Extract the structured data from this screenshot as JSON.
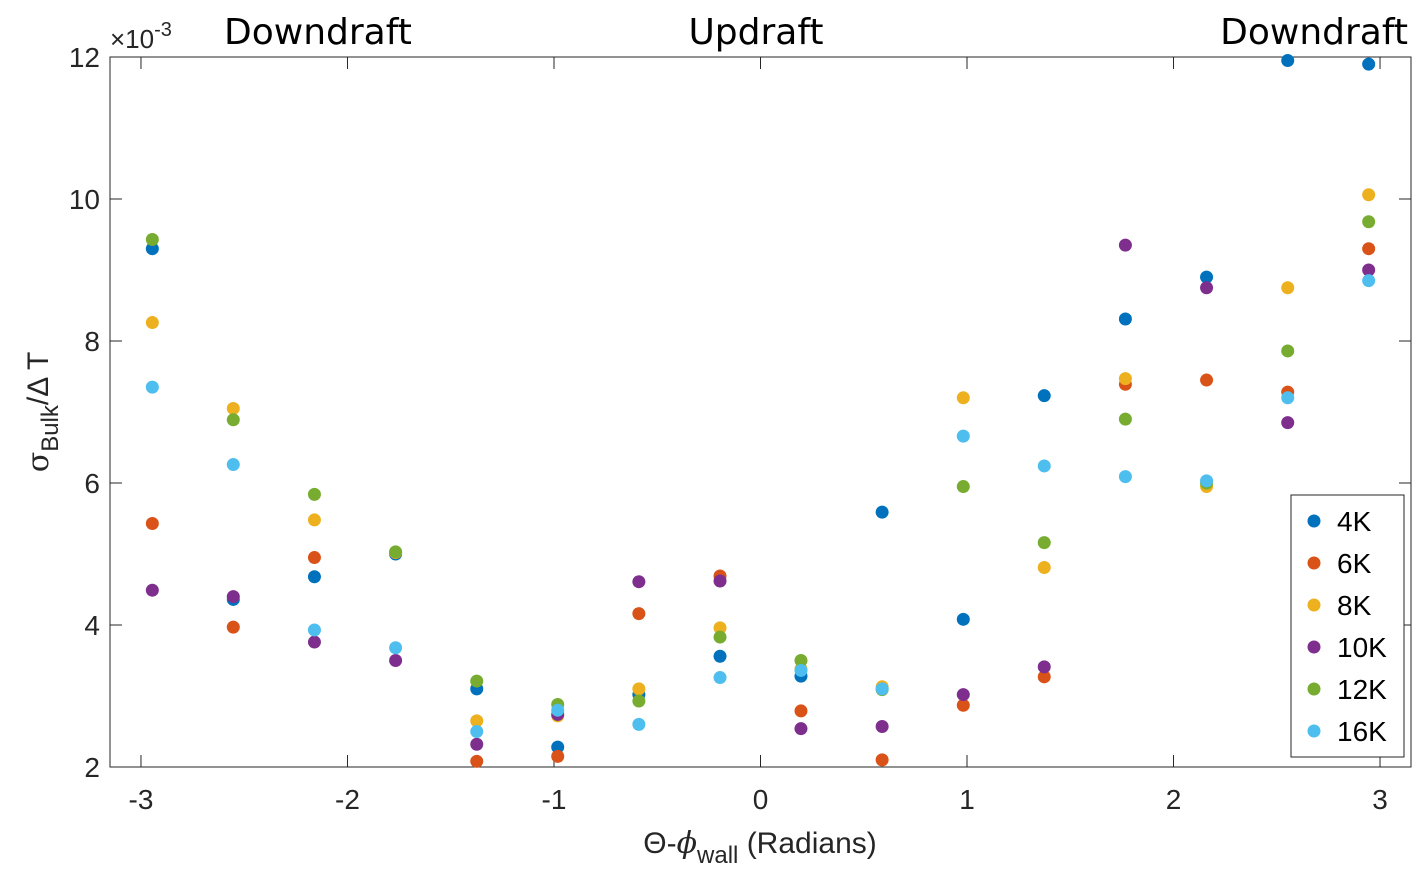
{
  "chart_data": {
    "type": "scatter",
    "xlabel": {
      "main": "Θ-",
      "sym": "ϕ",
      "sub": "wall",
      "rest": " (Radians)"
    },
    "ylabel": {
      "sym": "σ",
      "sub": "Bulk",
      "rest": "/Δ T"
    },
    "y_multiplier": {
      "prefix": "×10",
      "exponent": "-3"
    },
    "xlim": [
      -3.15,
      3.15
    ],
    "ylim": [
      2,
      12
    ],
    "xticks": [
      -3,
      -2,
      -1,
      0,
      1,
      2,
      3
    ],
    "xtick_labels": [
      "-3",
      "-2",
      "-1",
      "0",
      "1",
      "2",
      "3"
    ],
    "yticks": [
      2,
      4,
      6,
      8,
      10,
      12
    ],
    "ytick_labels": [
      "2",
      "4",
      "6",
      "8",
      "10",
      "12"
    ],
    "grid": false,
    "legend_position": "bottom-right",
    "annotations": [
      {
        "text": "Downdraft",
        "align": "left"
      },
      {
        "text": "Updraft",
        "align": "center"
      },
      {
        "text": "Downdraft",
        "align": "right"
      }
    ],
    "x": [
      -2.945,
      -2.553,
      -2.16,
      -1.767,
      -1.374,
      -0.982,
      -0.589,
      -0.196,
      0.196,
      0.589,
      0.982,
      1.374,
      1.767,
      2.16,
      2.553,
      2.945
    ],
    "series": [
      {
        "name": "4K",
        "color": "#0072BD",
        "values": [
          9.3,
          4.36,
          4.68,
          5.0,
          3.1,
          2.28,
          3.02,
          3.56,
          3.28,
          5.59,
          4.08,
          7.23,
          8.31,
          8.9,
          11.95,
          11.9
        ]
      },
      {
        "name": "6K",
        "color": "#D95319",
        "values": [
          5.43,
          3.97,
          4.95,
          5.02,
          2.08,
          2.15,
          4.16,
          4.69,
          2.79,
          2.1,
          2.87,
          3.27,
          7.39,
          7.45,
          7.28,
          9.3
        ]
      },
      {
        "name": "8K",
        "color": "#EDB120",
        "values": [
          8.26,
          7.05,
          5.48,
          5.02,
          2.65,
          2.72,
          3.1,
          3.96,
          3.38,
          3.13,
          7.2,
          4.81,
          7.47,
          5.95,
          8.75,
          10.06
        ]
      },
      {
        "name": "10K",
        "color": "#7E2F8E",
        "values": [
          4.49,
          4.4,
          3.76,
          3.5,
          2.32,
          2.74,
          4.61,
          4.62,
          2.54,
          2.57,
          3.02,
          3.41,
          9.35,
          8.75,
          6.85,
          9.0
        ]
      },
      {
        "name": "12K",
        "color": "#77AC30",
        "values": [
          9.43,
          6.89,
          5.84,
          5.03,
          3.21,
          2.88,
          2.93,
          3.83,
          3.5,
          3.09,
          5.95,
          5.16,
          6.9,
          6.0,
          7.86,
          9.68
        ]
      },
      {
        "name": "16K",
        "color": "#4DBEEE",
        "values": [
          7.35,
          6.26,
          3.93,
          3.68,
          2.5,
          2.8,
          2.6,
          3.26,
          3.36,
          3.1,
          6.66,
          6.24,
          6.09,
          6.03,
          7.2,
          8.85
        ]
      }
    ]
  }
}
